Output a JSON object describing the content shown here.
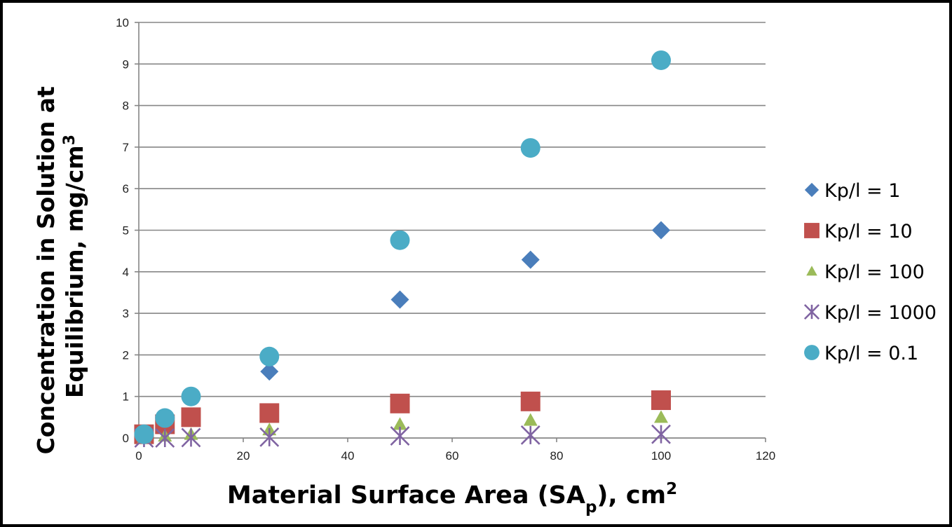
{
  "chart_data": {
    "type": "scatter",
    "title": "",
    "xlabel": {
      "main": "Material Surface Area (SA",
      "sub": "p",
      "after": "), cm",
      "sup": "2"
    },
    "ylabel": {
      "line1": "Concentration in Solution at",
      "line2": "Equilibrium, mg/cm",
      "sup": "3"
    },
    "xlim": [
      0,
      120
    ],
    "ylim": [
      0,
      10
    ],
    "xticks": [
      0,
      20,
      40,
      60,
      80,
      100,
      120
    ],
    "yticks": [
      0,
      1,
      2,
      3,
      4,
      5,
      6,
      7,
      8,
      9,
      10
    ],
    "grid": "horizontal",
    "legend_position": "right",
    "series": [
      {
        "name": "Kp/l = 1",
        "marker": "diamond",
        "color": "#4a7ebb",
        "x": [
          1,
          5,
          10,
          25,
          50,
          75,
          100
        ],
        "y": [
          0.05,
          0.25,
          0.5,
          1.6,
          3.33,
          4.29,
          5.0
        ]
      },
      {
        "name": "Kp/l = 10",
        "marker": "square",
        "color": "#c0504d",
        "x": [
          1,
          5,
          10,
          25,
          50,
          75,
          100
        ],
        "y": [
          0.09,
          0.33,
          0.5,
          0.6,
          0.83,
          0.88,
          0.91
        ]
      },
      {
        "name": "Kp/l = 100",
        "marker": "triangle",
        "color": "#9bbb59",
        "x": [
          1,
          5,
          10,
          25,
          50,
          75,
          100
        ],
        "y": [
          0.01,
          0.05,
          0.09,
          0.2,
          0.33,
          0.43,
          0.5
        ]
      },
      {
        "name": "Kp/l = 1000",
        "marker": "star",
        "color": "#8064a2",
        "x": [
          1,
          5,
          10,
          25,
          50,
          75,
          100
        ],
        "y": [
          0.0,
          0.0,
          0.01,
          0.02,
          0.05,
          0.07,
          0.09
        ]
      },
      {
        "name": "Kp/l = 0.1",
        "marker": "circle",
        "color": "#4bacc6",
        "x": [
          1,
          5,
          10,
          25,
          50,
          75,
          100
        ],
        "y": [
          0.09,
          0.48,
          1.0,
          1.96,
          4.76,
          6.98,
          9.09
        ]
      }
    ]
  }
}
